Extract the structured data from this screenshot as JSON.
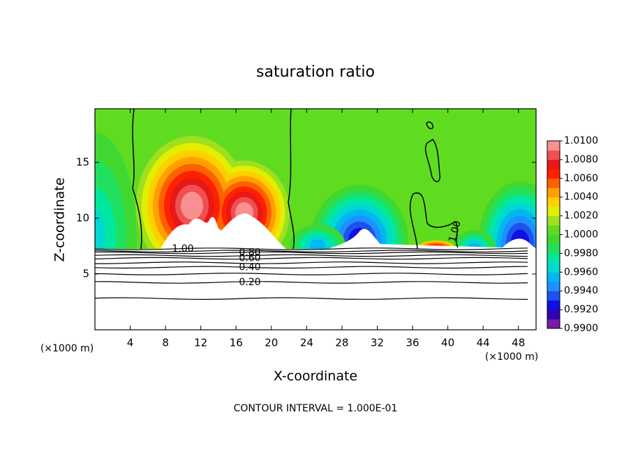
{
  "chart_data": {
    "type": "contour",
    "title": "saturation ratio",
    "xlabel": "X-coordinate",
    "ylabel": "Z-coordinate",
    "x_unit": "(×1000 m)",
    "x_unit_right": "(×1000 m)",
    "footer": "CONTOUR INTERVAL = 1.000E-01",
    "xlim": [
      0,
      50
    ],
    "ylim": [
      0,
      19.8
    ],
    "xticks": [
      4,
      8,
      12,
      16,
      20,
      24,
      28,
      32,
      36,
      40,
      44,
      48
    ],
    "yticks": [
      5,
      10,
      15
    ],
    "contours": [
      {
        "value": 0.1,
        "z": 2.8
      },
      {
        "value": 0.2,
        "z": 4.25
      },
      {
        "value": 0.3,
        "z": 5.0
      },
      {
        "value": 0.4,
        "z": 5.6
      },
      {
        "value": 0.5,
        "z": 6.0
      },
      {
        "value": 0.6,
        "z": 6.4
      },
      {
        "value": 0.7,
        "z": 6.65
      },
      {
        "value": 0.8,
        "z": 6.9
      },
      {
        "value": 0.9,
        "z": 7.05
      },
      {
        "value": 1,
        "z": 7.25
      }
    ],
    "contour_labels": [
      {
        "value": 1,
        "label": "1.00"
      },
      {
        "value": 0.8,
        "label": "0.80"
      },
      {
        "value": 0.6,
        "label": "0.60"
      },
      {
        "value": 0.4,
        "label": "0.40"
      },
      {
        "value": 0.2,
        "label": "0.20"
      },
      {
        "value": 1,
        "label": "1.00"
      }
    ],
    "colorbar": {
      "lim": [
        0.99,
        1.01
      ],
      "ticks": [
        {
          "value": 0.99,
          "label": "0.9900"
        },
        {
          "value": 0.992,
          "label": "0.9920"
        },
        {
          "value": 0.994,
          "label": "0.9940"
        },
        {
          "value": 0.996,
          "label": "0.9960"
        },
        {
          "value": 0.998,
          "label": "0.9980"
        },
        {
          "value": 1,
          "label": "1.0000"
        },
        {
          "value": 1.002,
          "label": "1.0020"
        },
        {
          "value": 1.004,
          "label": "1.0040"
        },
        {
          "value": 1.006,
          "label": "1.0060"
        },
        {
          "value": 1.008,
          "label": "1.0080"
        },
        {
          "value": 1.01,
          "label": "1.0100"
        }
      ],
      "colors": [
        "#7a1aa8",
        "#3300b0",
        "#1010e0",
        "#1e50f0",
        "#1e90ff",
        "#00b8f0",
        "#00d8d0",
        "#00e8a0",
        "#20e060",
        "#40d830",
        "#60dc20",
        "#a0e020",
        "#e0f000",
        "#ffd000",
        "#ffa000",
        "#ff6000",
        "#ff2000",
        "#e81818",
        "#f05050",
        "#f89090"
      ]
    }
  }
}
